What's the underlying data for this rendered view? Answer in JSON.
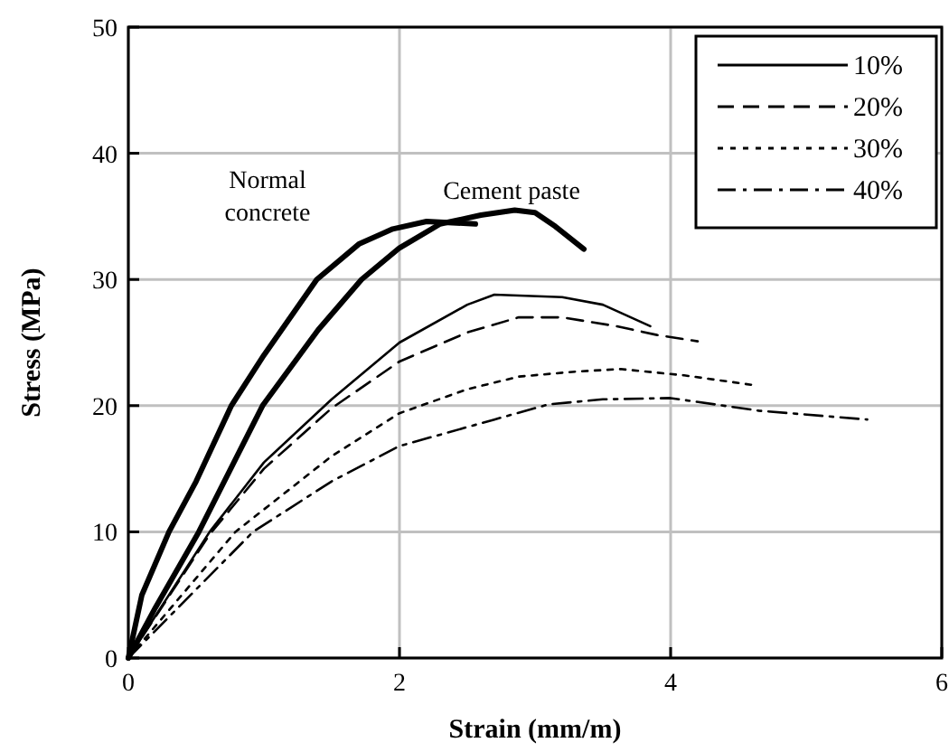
{
  "chart_data": {
    "type": "line",
    "xlabel": "Strain (mm/m)",
    "ylabel": "Stress (MPa)",
    "xlim": [
      0,
      6
    ],
    "xticks": [
      0,
      2,
      4,
      6
    ],
    "ylim": [
      0,
      50
    ],
    "yticks": [
      0,
      10,
      20,
      30,
      40,
      50
    ],
    "grid": true,
    "legend": "top right",
    "marker": "none",
    "series": [
      {
        "color": "#000000",
        "line_style": "solid",
        "x": [
          0,
          0.1,
          0.3,
          0.5,
          0.76,
          1.0,
          1.39,
          1.7,
          1.95,
          2.2,
          2.56
        ],
        "values": [
          0,
          5,
          10,
          14,
          20,
          24,
          30,
          32.8,
          34,
          34.6,
          34.4
        ]
      },
      {
        "color": "#000000",
        "line_style": "solid",
        "x": [
          0,
          0.2,
          0.52,
          0.99,
          1.4,
          1.72,
          2.0,
          2.3,
          2.6,
          2.85,
          3.0,
          3.15,
          3.36
        ],
        "values": [
          0,
          4,
          10,
          20,
          26,
          30,
          32.5,
          34.4,
          35.1,
          35.5,
          35.3,
          34.2,
          32.4
        ]
      },
      {
        "name": "10%",
        "color": "#000000",
        "line_style": "solid",
        "x": [
          0,
          0.6,
          1.0,
          1.5,
          2.0,
          2.5,
          2.7,
          3.2,
          3.5,
          3.85
        ],
        "values": [
          0,
          10,
          15.5,
          20.5,
          25,
          28,
          28.8,
          28.6,
          28,
          26.3
        ]
      },
      {
        "name": "20%",
        "color": "#000000",
        "line_style": "dashed",
        "x": [
          0,
          0.6,
          1.0,
          1.5,
          2.0,
          2.5,
          2.88,
          3.2,
          3.6,
          3.9,
          4.2
        ],
        "values": [
          0,
          9.8,
          15,
          19.8,
          23.5,
          25.8,
          27,
          27,
          26.3,
          25.6,
          25.1
        ]
      },
      {
        "name": "30%",
        "color": "#000000",
        "line_style": "dotted",
        "x": [
          0,
          0.79,
          1.5,
          2.0,
          2.5,
          2.88,
          3.3,
          3.63,
          4.1,
          4.63
        ],
        "values": [
          0,
          10,
          16,
          19.4,
          21.3,
          22.3,
          22.7,
          22.9,
          22.4,
          21.6
        ]
      },
      {
        "name": "40%",
        "color": "#000000",
        "line_style": "dashdot",
        "x": [
          0,
          0.92,
          1.5,
          2.0,
          2.7,
          3.1,
          3.5,
          4.0,
          4.65,
          5.45
        ],
        "values": [
          0,
          10,
          14,
          16.8,
          18.9,
          20.1,
          20.5,
          20.6,
          19.6,
          18.9
        ]
      }
    ],
    "annotations": [
      "Normal\nconcrete",
      "Cement paste"
    ]
  }
}
